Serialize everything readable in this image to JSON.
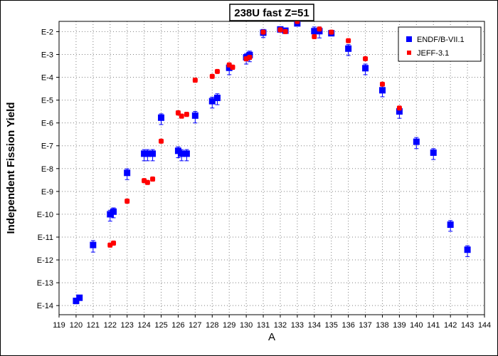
{
  "chart_data": {
    "type": "scatter",
    "title": "238U fast Z=51",
    "xlabel": "A",
    "ylabel": "Independent Fission Yield",
    "xlim": [
      119,
      144
    ],
    "x_ticks": [
      119,
      120,
      121,
      122,
      123,
      124,
      125,
      126,
      127,
      128,
      129,
      130,
      131,
      132,
      133,
      134,
      135,
      136,
      137,
      138,
      139,
      140,
      141,
      142,
      143,
      144
    ],
    "y_scale": "log",
    "ylim_exponent": [
      -14.4,
      -1.55
    ],
    "y_tick_exponents": [
      -2,
      -3,
      -4,
      -5,
      -6,
      -7,
      -8,
      -9,
      -10,
      -11,
      -12,
      -13,
      -14
    ],
    "y_tick_labels": [
      "E-2",
      "E-3",
      "E-4",
      "E-5",
      "E-6",
      "E-7",
      "E-8",
      "E-9",
      "E-10",
      "E-11",
      "E-12",
      "E-13",
      "E-14"
    ],
    "grid": true,
    "legend_position": "top-right",
    "series": [
      {
        "name": "ENDF/B-VII.1",
        "color": "#0000ff",
        "marker": "square",
        "points": [
          {
            "x": 120,
            "y": 1.6e-14,
            "lo": 1.2e-14,
            "hi": 2e-14
          },
          {
            "x": 120.2,
            "y": 2.2e-14,
            "lo": 1.7e-14,
            "hi": 2.8e-14
          },
          {
            "x": 121,
            "y": 4.5e-12,
            "lo": 2.2e-12,
            "hi": 7e-12
          },
          {
            "x": 122,
            "y": 1e-10,
            "lo": 5e-11,
            "hi": 1.5e-10
          },
          {
            "x": 122.2,
            "y": 1.3e-10,
            "lo": 7e-11,
            "hi": 1.9e-10
          },
          {
            "x": 123,
            "y": 6.5e-09,
            "lo": 3.3e-09,
            "hi": 9.8e-09
          },
          {
            "x": 124,
            "y": 4.5e-08,
            "lo": 2.2e-08,
            "hi": 6.8e-08
          },
          {
            "x": 124.2,
            "y": 4.5e-08,
            "lo": 2.2e-08,
            "hi": 6.8e-08
          },
          {
            "x": 124.5,
            "y": 4.5e-08,
            "lo": 2.2e-08,
            "hi": 6.8e-08
          },
          {
            "x": 125,
            "y": 1.7e-06,
            "lo": 8.5e-07,
            "hi": 2.5e-06
          },
          {
            "x": 126,
            "y": 6e-08,
            "lo": 3e-08,
            "hi": 9e-08
          },
          {
            "x": 126.2,
            "y": 4.5e-08,
            "lo": 2.2e-08,
            "hi": 6.8e-08
          },
          {
            "x": 126.5,
            "y": 4.5e-08,
            "lo": 2.2e-08,
            "hi": 6.8e-08
          },
          {
            "x": 127,
            "y": 2.1e-06,
            "lo": 1e-06,
            "hi": 3.2e-06
          },
          {
            "x": 128,
            "y": 9e-06,
            "lo": 4.5e-06,
            "hi": 1.35e-05
          },
          {
            "x": 128.3,
            "y": 1.25e-05,
            "lo": 6.3e-06,
            "hi": 1.9e-05
          },
          {
            "x": 129,
            "y": 0.00026,
            "lo": 0.00013,
            "hi": 0.00039
          },
          {
            "x": 130,
            "y": 0.00075,
            "lo": 0.00038,
            "hi": 0.0011
          },
          {
            "x": 130.2,
            "y": 0.00095,
            "lo": 0.00048,
            "hi": 0.0014
          },
          {
            "x": 131,
            "y": 0.009,
            "lo": 0.0055,
            "hi": 0.0125
          },
          {
            "x": 132,
            "y": 0.0125,
            "lo": 0.01,
            "hi": 0.015
          },
          {
            "x": 132.3,
            "y": 0.011,
            "lo": 0.009,
            "hi": 0.013
          },
          {
            "x": 133,
            "y": 0.023,
            "lo": 0.019,
            "hi": 0.027
          },
          {
            "x": 134,
            "y": 0.0105,
            "lo": 0.0053,
            "hi": 0.016
          },
          {
            "x": 134.3,
            "y": 0.0105,
            "lo": 0.0053,
            "hi": 0.016
          },
          {
            "x": 135,
            "y": 0.0085,
            "lo": 0.0065,
            "hi": 0.0105
          },
          {
            "x": 136,
            "y": 0.0018,
            "lo": 0.0009,
            "hi": 0.0027
          },
          {
            "x": 137,
            "y": 0.00025,
            "lo": 0.00013,
            "hi": 0.00038
          },
          {
            "x": 138,
            "y": 2.7e-05,
            "lo": 1.4e-05,
            "hi": 4.1e-05
          },
          {
            "x": 139,
            "y": 3.2e-06,
            "lo": 1.6e-06,
            "hi": 4.8e-06
          },
          {
            "x": 140,
            "y": 1.5e-07,
            "lo": 7.5e-08,
            "hi": 2.3e-07
          },
          {
            "x": 141,
            "y": 5e-08,
            "lo": 2.5e-08,
            "hi": 7.5e-08
          },
          {
            "x": 142,
            "y": 3.5e-11,
            "lo": 1.8e-11,
            "hi": 5.3e-11
          },
          {
            "x": 143,
            "y": 2.8e-12,
            "lo": 1.4e-12,
            "hi": 4.2e-12
          }
        ]
      },
      {
        "name": "JEFF-3.1",
        "color": "#ff0000",
        "marker": "circle",
        "points": [
          {
            "x": 122,
            "y": 4.5e-12,
            "lo": 3.6e-12,
            "hi": 5.4e-12
          },
          {
            "x": 122.2,
            "y": 5.5e-12,
            "lo": 4.4e-12,
            "hi": 6.6e-12
          },
          {
            "x": 123,
            "y": 3.8e-10,
            "lo": 3e-10,
            "hi": 4.6e-10
          },
          {
            "x": 124,
            "y": 3e-09,
            "lo": 2.4e-09,
            "hi": 3.6e-09
          },
          {
            "x": 124.2,
            "y": 2.5e-09,
            "lo": 2e-09,
            "hi": 3e-09
          },
          {
            "x": 124.5,
            "y": 3.5e-09,
            "lo": 2.8e-09,
            "hi": 4.2e-09
          },
          {
            "x": 125,
            "y": 1.6e-07,
            "lo": 1.3e-07,
            "hi": 1.9e-07
          },
          {
            "x": 126,
            "y": 2.8e-06,
            "lo": 2.2e-06,
            "hi": 3.4e-06
          },
          {
            "x": 126.2,
            "y": 2e-06,
            "lo": 1.6e-06,
            "hi": 2.4e-06
          },
          {
            "x": 126.5,
            "y": 2.4e-06,
            "lo": 1.9e-06,
            "hi": 2.9e-06
          },
          {
            "x": 127,
            "y": 7.5e-05,
            "lo": 6e-05,
            "hi": 9e-05
          },
          {
            "x": 128,
            "y": 0.00011,
            "lo": 9e-05,
            "hi": 0.00013
          },
          {
            "x": 128.3,
            "y": 0.00018,
            "lo": 0.00015,
            "hi": 0.00021
          },
          {
            "x": 129,
            "y": 0.00035,
            "lo": 0.00028,
            "hi": 0.00042
          },
          {
            "x": 129.2,
            "y": 0.00028,
            "lo": 0.00022,
            "hi": 0.00034
          },
          {
            "x": 130,
            "y": 0.00065,
            "lo": 0.00052,
            "hi": 0.00078
          },
          {
            "x": 130.2,
            "y": 0.00075,
            "lo": 0.0006,
            "hi": 0.0009
          },
          {
            "x": 131,
            "y": 0.0095,
            "lo": 0.008,
            "hi": 0.011
          },
          {
            "x": 132,
            "y": 0.012,
            "lo": 0.01,
            "hi": 0.014
          },
          {
            "x": 132.3,
            "y": 0.01,
            "lo": 0.0085,
            "hi": 0.0115
          },
          {
            "x": 133,
            "y": 0.028,
            "lo": 0.024,
            "hi": 0.032
          },
          {
            "x": 134,
            "y": 0.006,
            "lo": 0.005,
            "hi": 0.007
          },
          {
            "x": 134.3,
            "y": 0.013,
            "lo": 0.011,
            "hi": 0.015
          },
          {
            "x": 135,
            "y": 0.0095,
            "lo": 0.008,
            "hi": 0.011
          },
          {
            "x": 136,
            "y": 0.004,
            "lo": 0.0033,
            "hi": 0.0047
          },
          {
            "x": 137,
            "y": 0.00065,
            "lo": 0.00054,
            "hi": 0.00076
          },
          {
            "x": 138,
            "y": 5e-05,
            "lo": 4.2e-05,
            "hi": 5.8e-05
          },
          {
            "x": 139,
            "y": 4.5e-06,
            "lo": 3.8e-06,
            "hi": 5.2e-06
          }
        ]
      }
    ]
  }
}
